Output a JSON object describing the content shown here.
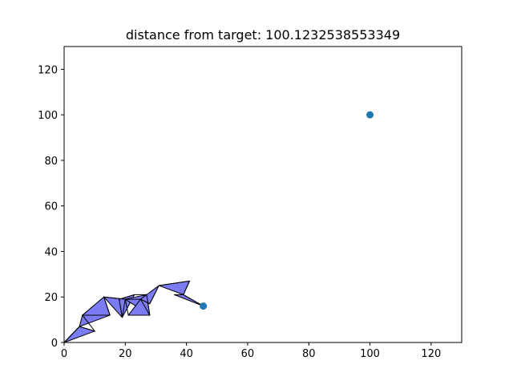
{
  "chart_data": {
    "type": "scatter",
    "title": "distance from target: 100.1232538553349",
    "xlim": [
      0,
      130
    ],
    "ylim": [
      0,
      130
    ],
    "x_ticks": [
      0,
      20,
      40,
      60,
      80,
      100,
      120
    ],
    "y_ticks": [
      0,
      20,
      40,
      60,
      80,
      100,
      120
    ],
    "grid": false,
    "points": [
      {
        "x": 100,
        "y": 100,
        "color": "#1f77b4"
      },
      {
        "x": 45.5,
        "y": 16,
        "color": "#1f77b4"
      }
    ],
    "arm_segments": [
      [
        [
          0,
          0
        ],
        [
          5,
          7
        ],
        [
          10,
          5
        ],
        [
          6,
          12
        ],
        [
          15,
          12
        ],
        [
          13,
          20
        ],
        [
          20,
          19
        ],
        [
          19,
          11
        ],
        [
          18,
          19
        ],
        [
          23,
          21
        ],
        [
          27,
          21
        ],
        [
          28,
          12
        ],
        [
          21,
          12
        ],
        [
          20,
          19
        ],
        [
          25,
          19
        ],
        [
          28,
          17
        ],
        [
          31,
          25
        ],
        [
          41,
          27
        ],
        [
          39,
          21
        ],
        [
          45.5,
          16
        ]
      ]
    ],
    "arm_fill": "#7b7bf4",
    "arm_triangles": [
      [
        [
          0,
          0
        ],
        [
          10,
          5
        ],
        [
          5,
          7
        ]
      ],
      [
        [
          5,
          7
        ],
        [
          15,
          12
        ],
        [
          6,
          12
        ]
      ],
      [
        [
          6,
          12
        ],
        [
          13,
          20
        ],
        [
          15,
          12
        ]
      ],
      [
        [
          13,
          20
        ],
        [
          20,
          19
        ],
        [
          19,
          11
        ]
      ],
      [
        [
          19,
          11
        ],
        [
          18,
          19
        ],
        [
          23,
          21
        ]
      ],
      [
        [
          20,
          19
        ],
        [
          27,
          21
        ],
        [
          28,
          12
        ]
      ],
      [
        [
          21,
          12
        ],
        [
          28,
          12
        ],
        [
          25,
          19
        ]
      ],
      [
        [
          25,
          19
        ],
        [
          31,
          25
        ],
        [
          28,
          17
        ]
      ],
      [
        [
          31,
          25
        ],
        [
          41,
          27
        ],
        [
          39,
          21
        ]
      ],
      [
        [
          36,
          21
        ],
        [
          45.5,
          16
        ],
        [
          39,
          21
        ]
      ]
    ]
  }
}
